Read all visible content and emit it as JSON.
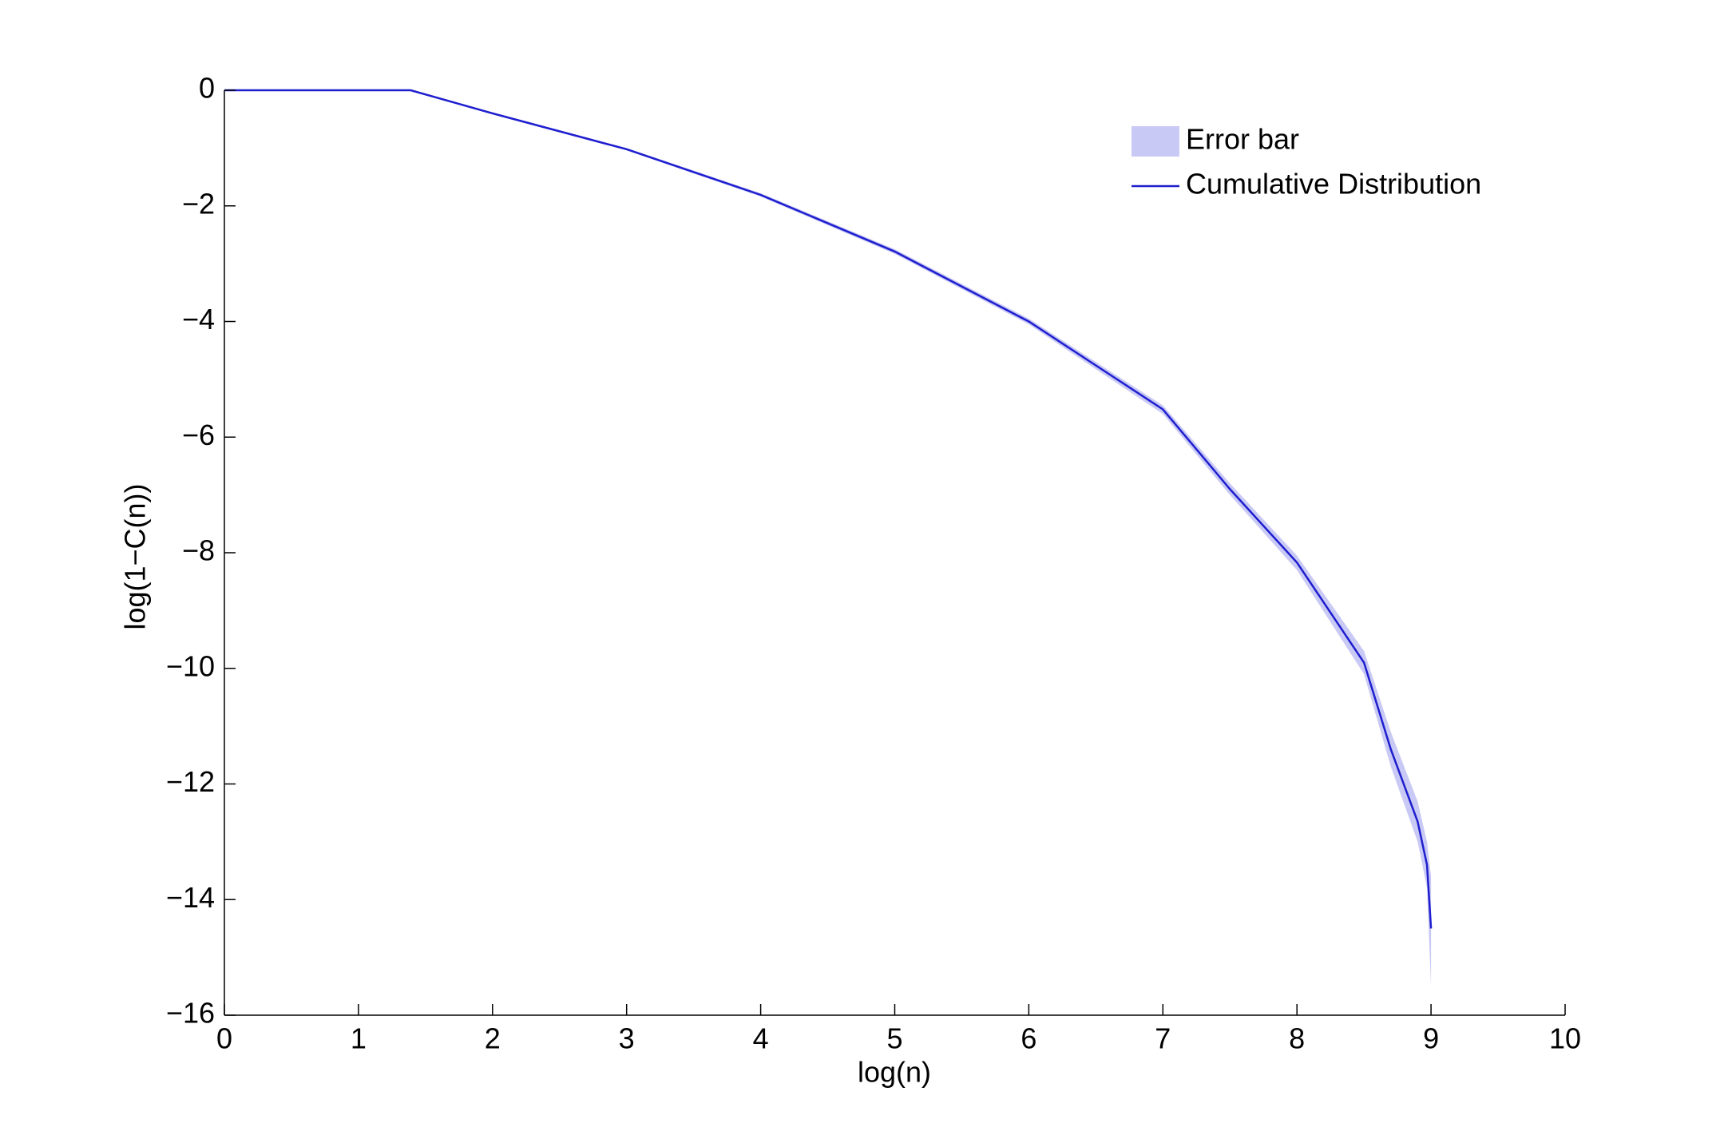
{
  "chart_data": {
    "type": "line",
    "xlabel": "log(n)",
    "ylabel": "log(1−C(n))",
    "x": [
      0,
      1.39,
      2,
      3,
      4,
      5,
      6,
      7,
      7.5,
      8,
      8.5,
      8.7,
      8.9,
      8.97,
      9.0
    ],
    "series": [
      {
        "name": "Error bar",
        "color": "#c9c9f5",
        "kind": "band",
        "upper": [
          0,
          0,
          -0.38,
          -1.0,
          -1.78,
          -2.75,
          -3.95,
          -5.45,
          -6.8,
          -8.05,
          -9.7,
          -11.1,
          -12.3,
          -13.0,
          -13.6
        ],
        "lower": [
          0,
          0,
          -0.42,
          -1.04,
          -1.84,
          -2.83,
          -4.05,
          -5.6,
          -7.0,
          -8.3,
          -10.1,
          -11.7,
          -13.0,
          -13.8,
          -15.5
        ]
      },
      {
        "name": "Cumulative Distribution",
        "color": "#1e1ecf",
        "kind": "line",
        "values": [
          0,
          0,
          -0.4,
          -1.02,
          -1.81,
          -2.79,
          -4.0,
          -5.52,
          -6.9,
          -8.17,
          -9.9,
          -11.4,
          -12.65,
          -13.4,
          -14.5
        ]
      }
    ],
    "xlim": [
      0,
      10
    ],
    "xticks": [
      0,
      1,
      2,
      3,
      4,
      5,
      6,
      7,
      8,
      9,
      10
    ],
    "ylim": [
      -16,
      0
    ],
    "yticks": [
      {
        "value": -16,
        "label": "−16"
      },
      {
        "value": -14,
        "label": "−14"
      },
      {
        "value": -12,
        "label": "−12"
      },
      {
        "value": -10,
        "label": "−10"
      },
      {
        "value": -8,
        "label": "−8"
      },
      {
        "value": -6,
        "label": "−6"
      },
      {
        "value": -4,
        "label": "−4"
      },
      {
        "value": -2,
        "label": "−2"
      },
      0
    ],
    "grid": false,
    "legend": "upper right"
  }
}
